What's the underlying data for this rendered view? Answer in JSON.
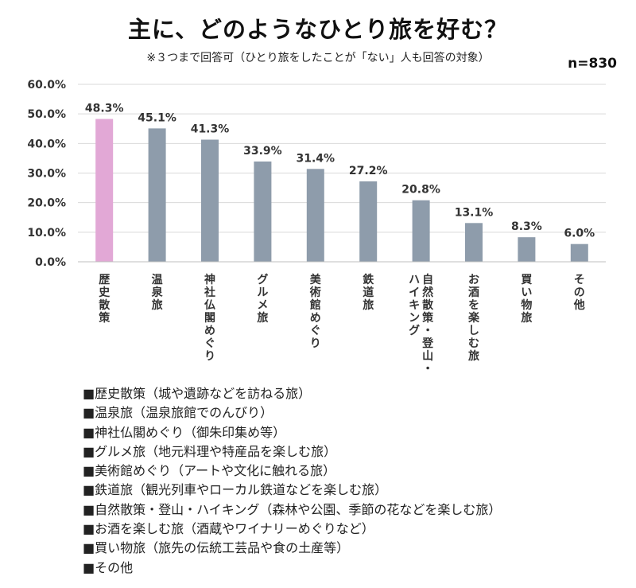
{
  "header": {
    "title": "主に、どのようなひとり旅を好む？",
    "subtitle": "※３つまで回答可（ひとり旅をしたことが「ない」人も回答の対象）",
    "sample_size": "n=830"
  },
  "chart_data": {
    "type": "bar",
    "categories": [
      "歴史散策",
      "温泉旅",
      "神社仏閣めぐり",
      "グルメ旅",
      "美術館めぐり",
      "鉄道旅",
      "自然散策・登山・ハイキング",
      "お酒を楽しむ旅",
      "買い物旅",
      "その他"
    ],
    "category_lines": [
      [
        "歴史散策"
      ],
      [
        "温泉旅"
      ],
      [
        "神社仏閣めぐり"
      ],
      [
        "グルメ旅"
      ],
      [
        "美術館めぐり"
      ],
      [
        "鉄道旅"
      ],
      [
        "自然散策・登山・",
        "ハイキング"
      ],
      [
        "お酒を楽しむ旅"
      ],
      [
        "買い物旅"
      ],
      [
        "その他"
      ]
    ],
    "values": [
      48.3,
      45.1,
      41.3,
      33.9,
      31.4,
      27.2,
      20.8,
      13.1,
      8.3,
      6.0
    ],
    "value_labels": [
      "48.3%",
      "45.1%",
      "41.3%",
      "33.9%",
      "31.4%",
      "27.2%",
      "20.8%",
      "13.1%",
      "8.3%",
      "6.0%"
    ],
    "yticks": [
      0,
      10,
      20,
      30,
      40,
      50,
      60
    ],
    "ytick_labels": [
      "0.0%",
      "10.0%",
      "20.0%",
      "30.0%",
      "40.0%",
      "50.0%",
      "60.0%"
    ],
    "ylim": [
      0,
      60
    ],
    "grid": true,
    "colors": {
      "highlight": "#e2a8d6",
      "default": "#8e9cab",
      "grid": "#d9d9d9"
    }
  },
  "legend": {
    "items": [
      "■歴史散策（城や遺跡などを訪ねる旅）",
      "■温泉旅（温泉旅館でのんびり）",
      "■神社仏閣めぐり（御朱印集め等）",
      "■グルメ旅（地元料理や特産品を楽しむ旅）",
      "■美術館めぐり（アートや文化に触れる旅）",
      "■鉄道旅（観光列車やローカル鉄道などを楽しむ旅）",
      "■自然散策・登山・ハイキング（森林や公園、季節の花などを楽しむ旅）",
      "■お酒を楽しむ旅（酒蔵やワイナリーめぐりなど）",
      "■買い物旅（旅先の伝統工芸品や食の土産等）",
      "■その他"
    ]
  }
}
